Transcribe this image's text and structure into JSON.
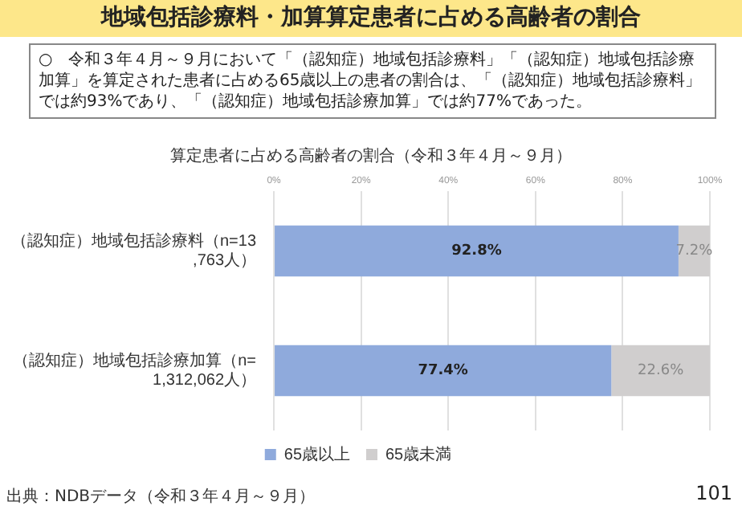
{
  "chart_data": {
    "type": "bar",
    "orientation": "horizontal",
    "stacked": true,
    "title": "地域包括診療料・加算算定患者に占める高齢者の割合",
    "subtitle": "算定患者に占める高齢者の割合（令和３年４月～９月）",
    "categories": [
      "（認知症）地域包括診療料（n=13,763人）",
      "（認知症）地域包括診療加算（n=1,312,062人）"
    ],
    "series": [
      {
        "name": "65歳以上",
        "color": "#8faadc",
        "values": [
          92.8,
          77.4
        ],
        "value_labels": [
          "92.8%",
          "77.4%"
        ]
      },
      {
        "name": "65歳未満",
        "color": "#d0cece",
        "values": [
          7.2,
          22.6
        ],
        "value_labels": [
          "7.2%",
          "22.6%"
        ]
      }
    ],
    "xlim": [
      0,
      100
    ],
    "xticks": [
      {
        "value": 0,
        "label": "0%"
      },
      {
        "value": 20,
        "label": "20%"
      },
      {
        "value": 40,
        "label": "40%"
      },
      {
        "value": 60,
        "label": "60%"
      },
      {
        "value": 80,
        "label": "80%"
      },
      {
        "value": 100,
        "label": "100%"
      }
    ],
    "grid": "x",
    "legend": "bottom",
    "annotations": [
      "○　令和３年４月～９月において「（認知症）地域包括診療料」「（認知症）地域包括診療加算」を算定された患者に占める65歳以上の患者の割合は、「（認知症）地域包括診療料」では約93%であり、「（認知症）地域包括診療加算」では約77%であった。",
      "出典：NDBデータ（令和３年４月～９月）",
      "101"
    ]
  }
}
